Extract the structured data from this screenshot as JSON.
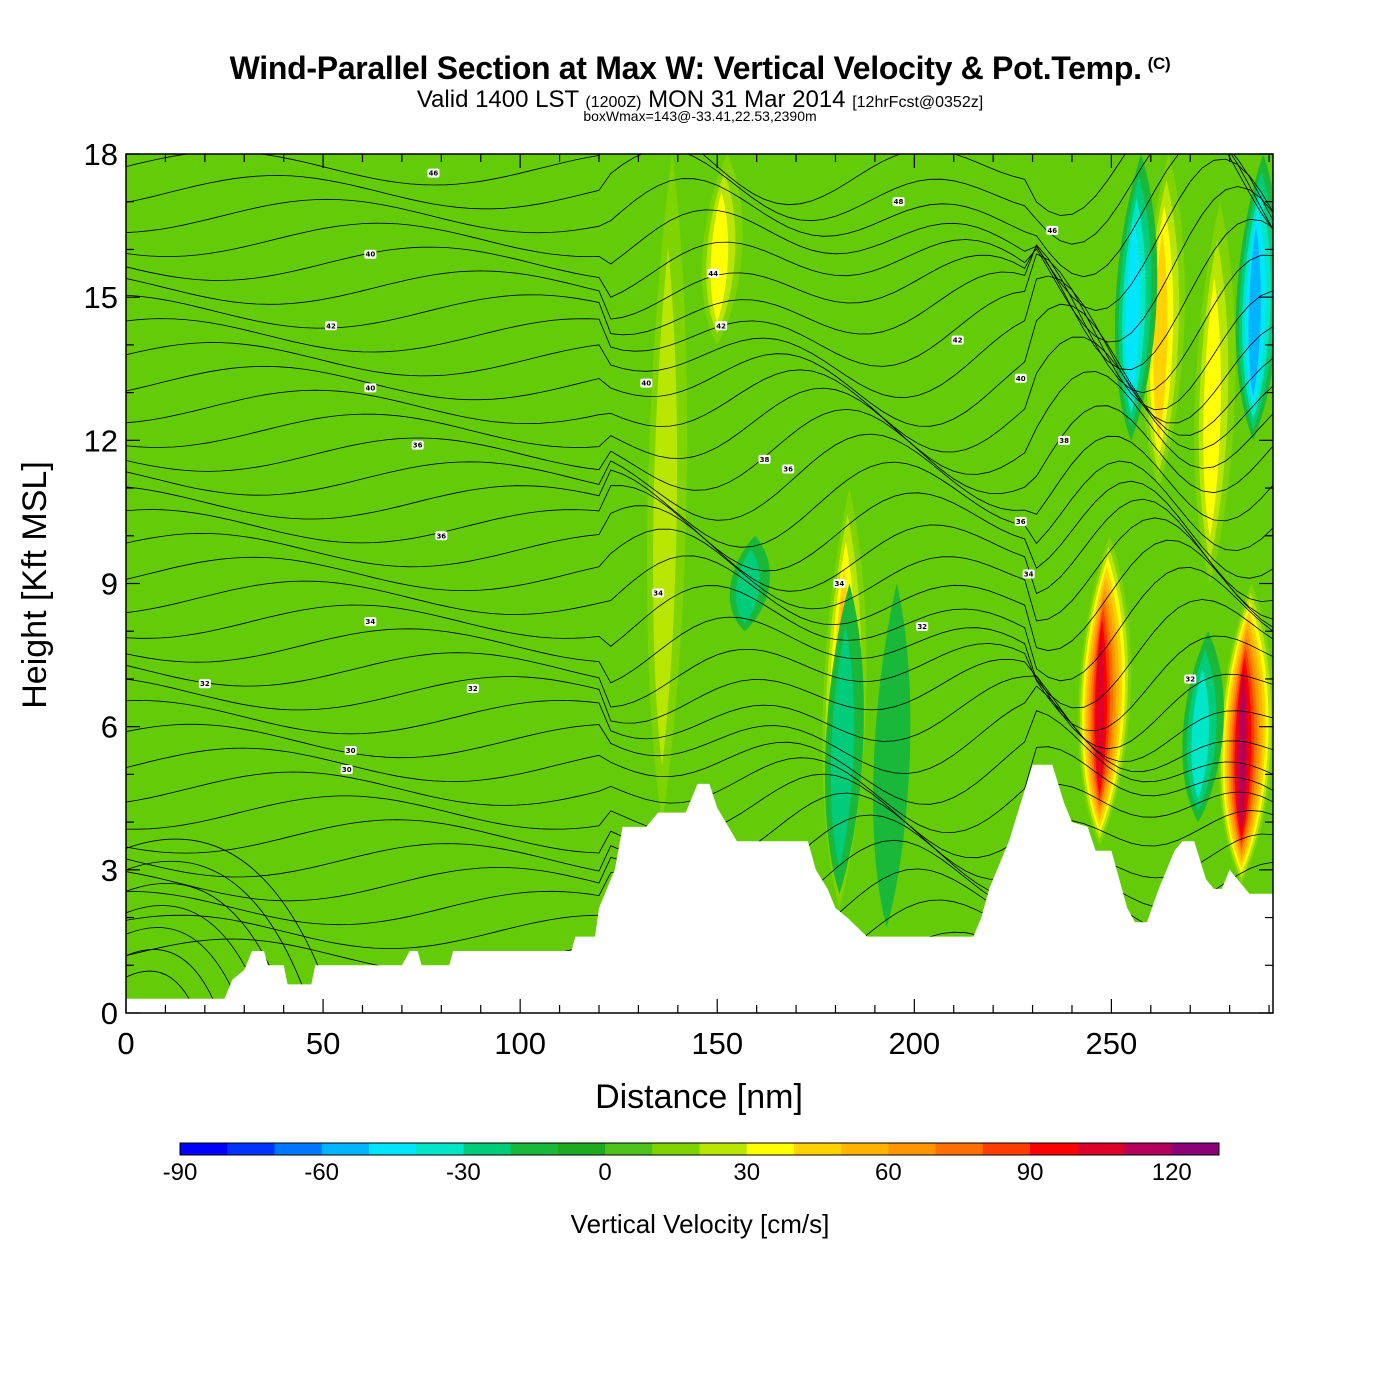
{
  "header": {
    "title": "Wind-Parallel Section at Max W: Vertical Velocity & Pot.Temp.",
    "copyright": "(C)",
    "valid_prefix": "Valid 1400 LST",
    "valid_utc": "(1200Z)",
    "valid_date": "MON 31 Mar 2014",
    "forecast_info": "[12hrFcst@0352z]",
    "box_max": "boxWmax=143@-33.41,22.53,2390m"
  },
  "chart_data": {
    "type": "heatmap",
    "xlabel": "Distance [nm]",
    "ylabel": "Height [Kft MSL]",
    "xlim": [
      0,
      291
    ],
    "ylim": [
      0,
      18
    ],
    "x_ticks": [
      0,
      50,
      100,
      150,
      200,
      250
    ],
    "y_ticks": [
      0,
      3,
      6,
      9,
      12,
      15,
      18
    ],
    "grid": false,
    "colorbar": {
      "title": "Vertical Velocity [cm/s]",
      "placement": "bottom",
      "levels": [
        -90,
        -80,
        -70,
        -60,
        -50,
        -40,
        -30,
        -20,
        -10,
        0,
        10,
        20,
        30,
        40,
        50,
        60,
        70,
        80,
        90,
        100,
        110,
        120,
        130
      ],
      "tick_values": [
        -90,
        -60,
        -30,
        0,
        30,
        60,
        90,
        120
      ],
      "colors": [
        "#0000ff",
        "#0033ff",
        "#0077ff",
        "#00b4ff",
        "#00e6ff",
        "#00e6c8",
        "#00cc7a",
        "#19b83a",
        "#1eaa1e",
        "#4cc21a",
        "#7fd400",
        "#b8e600",
        "#ffff00",
        "#ffd200",
        "#ffb400",
        "#ff9600",
        "#ff6e00",
        "#ff3c00",
        "#ff0000",
        "#dc0028",
        "#b4005a",
        "#8c0078"
      ]
    },
    "terrain": [
      [
        0,
        0.3
      ],
      [
        25,
        0.3
      ],
      [
        27,
        0.7
      ],
      [
        30,
        0.9
      ],
      [
        31,
        1.1
      ],
      [
        32,
        1.3
      ],
      [
        35,
        1.3
      ],
      [
        36,
        1.0
      ],
      [
        40,
        1.0
      ],
      [
        41,
        0.6
      ],
      [
        47,
        0.6
      ],
      [
        48,
        1.0
      ],
      [
        70,
        1.0
      ],
      [
        72,
        1.3
      ],
      [
        74,
        1.3
      ],
      [
        75,
        1.0
      ],
      [
        82,
        1.0
      ],
      [
        83,
        1.3
      ],
      [
        113,
        1.3
      ],
      [
        114,
        1.6
      ],
      [
        119,
        1.6
      ],
      [
        120,
        2.2
      ],
      [
        122,
        2.6
      ],
      [
        124,
        3.0
      ],
      [
        126,
        3.9
      ],
      [
        132,
        3.9
      ],
      [
        135,
        4.2
      ],
      [
        142,
        4.2
      ],
      [
        145,
        4.8
      ],
      [
        148,
        4.8
      ],
      [
        150,
        4.3
      ],
      [
        155,
        3.6
      ],
      [
        173,
        3.6
      ],
      [
        175,
        3.0
      ],
      [
        178,
        2.6
      ],
      [
        180,
        2.2
      ],
      [
        183,
        2.0
      ],
      [
        188,
        1.6
      ],
      [
        206,
        1.6
      ],
      [
        215,
        1.6
      ],
      [
        217,
        2.0
      ],
      [
        219,
        2.6
      ],
      [
        221,
        3.0
      ],
      [
        224,
        3.6
      ],
      [
        230,
        5.2
      ],
      [
        235,
        5.2
      ],
      [
        238,
        4.4
      ],
      [
        240,
        4.0
      ],
      [
        244,
        3.9
      ],
      [
        246,
        3.4
      ],
      [
        250,
        3.4
      ],
      [
        254,
        2.2
      ],
      [
        256,
        1.9
      ],
      [
        259,
        1.9
      ],
      [
        262,
        2.6
      ],
      [
        266,
        3.4
      ],
      [
        268,
        3.6
      ],
      [
        271,
        3.6
      ],
      [
        274,
        2.8
      ],
      [
        276,
        2.6
      ],
      [
        278,
        2.6
      ],
      [
        280,
        3.0
      ],
      [
        285,
        2.5
      ],
      [
        291,
        2.5
      ]
    ],
    "features": [
      {
        "x": 136,
        "top": 18,
        "bottom": 4.0,
        "value": 32
      },
      {
        "x": 150,
        "top": 18,
        "bottom": 14,
        "value": 36
      },
      {
        "x": 181,
        "top": 11,
        "bottom": 2.2,
        "value": 55
      },
      {
        "x": 157,
        "top": 10,
        "bottom": 8,
        "value": -32
      },
      {
        "x": 247,
        "top": 10,
        "bottom": 3.5,
        "value": 105
      },
      {
        "x": 283,
        "top": 9,
        "bottom": 2.7,
        "value": 120
      },
      {
        "x": 262,
        "top": 18,
        "bottom": 11,
        "value": 45
      },
      {
        "x": 255,
        "top": 18,
        "bottom": 12,
        "value": -45
      },
      {
        "x": 275,
        "top": 17,
        "bottom": 9,
        "value": 38
      },
      {
        "x": 286,
        "top": 18,
        "bottom": 12,
        "value": -60
      },
      {
        "x": 272,
        "top": 8,
        "bottom": 4,
        "value": -40
      },
      {
        "x": 181,
        "top": 9,
        "bottom": 2.5,
        "value": -25
      },
      {
        "x": 193,
        "top": 9,
        "bottom": 1.8,
        "value": -15
      }
    ],
    "theta_contours": [
      {
        "label": "30",
        "y": 5.1,
        "label_x": 56
      },
      {
        "label": "30",
        "y": 5.5,
        "label_x": 57
      },
      {
        "label": "32",
        "y": 6.8,
        "label_x": 88
      },
      {
        "label": "32",
        "y": 6.9,
        "label_x": 20
      },
      {
        "label": "34",
        "y": 8.2,
        "label_x": 62
      },
      {
        "label": "36",
        "y": 10.0,
        "label_x": 80
      },
      {
        "label": "36",
        "y": 11.9,
        "label_x": 74
      },
      {
        "label": "40",
        "y": 13.1,
        "label_x": 62
      },
      {
        "label": "42",
        "y": 14.4,
        "label_x": 52
      },
      {
        "label": "40",
        "y": 15.9,
        "label_x": 62
      },
      {
        "label": "46",
        "y": 17.6,
        "label_x": 78
      },
      {
        "label": "44",
        "y": 15.5,
        "label_x": 149
      },
      {
        "label": "42",
        "y": 14.4,
        "label_x": 151
      },
      {
        "label": "40",
        "y": 13.2,
        "label_x": 132
      },
      {
        "label": "38",
        "y": 11.6,
        "label_x": 162
      },
      {
        "label": "36",
        "y": 11.4,
        "label_x": 168
      },
      {
        "label": "34",
        "y": 8.8,
        "label_x": 135
      },
      {
        "label": "34",
        "y": 9.0,
        "label_x": 181
      },
      {
        "label": "32",
        "y": 8.1,
        "label_x": 202
      },
      {
        "label": "48",
        "y": 17.0,
        "label_x": 196
      },
      {
        "label": "42",
        "y": 14.1,
        "label_x": 211
      },
      {
        "label": "40",
        "y": 13.3,
        "label_x": 227
      },
      {
        "label": "46",
        "y": 16.4,
        "label_x": 235
      },
      {
        "label": "38",
        "y": 12.0,
        "label_x": 238
      },
      {
        "label": "36",
        "y": 10.3,
        "label_x": 227
      },
      {
        "label": "34",
        "y": 9.2,
        "label_x": 229
      },
      {
        "label": "32",
        "y": 7.0,
        "label_x": 270
      }
    ]
  }
}
